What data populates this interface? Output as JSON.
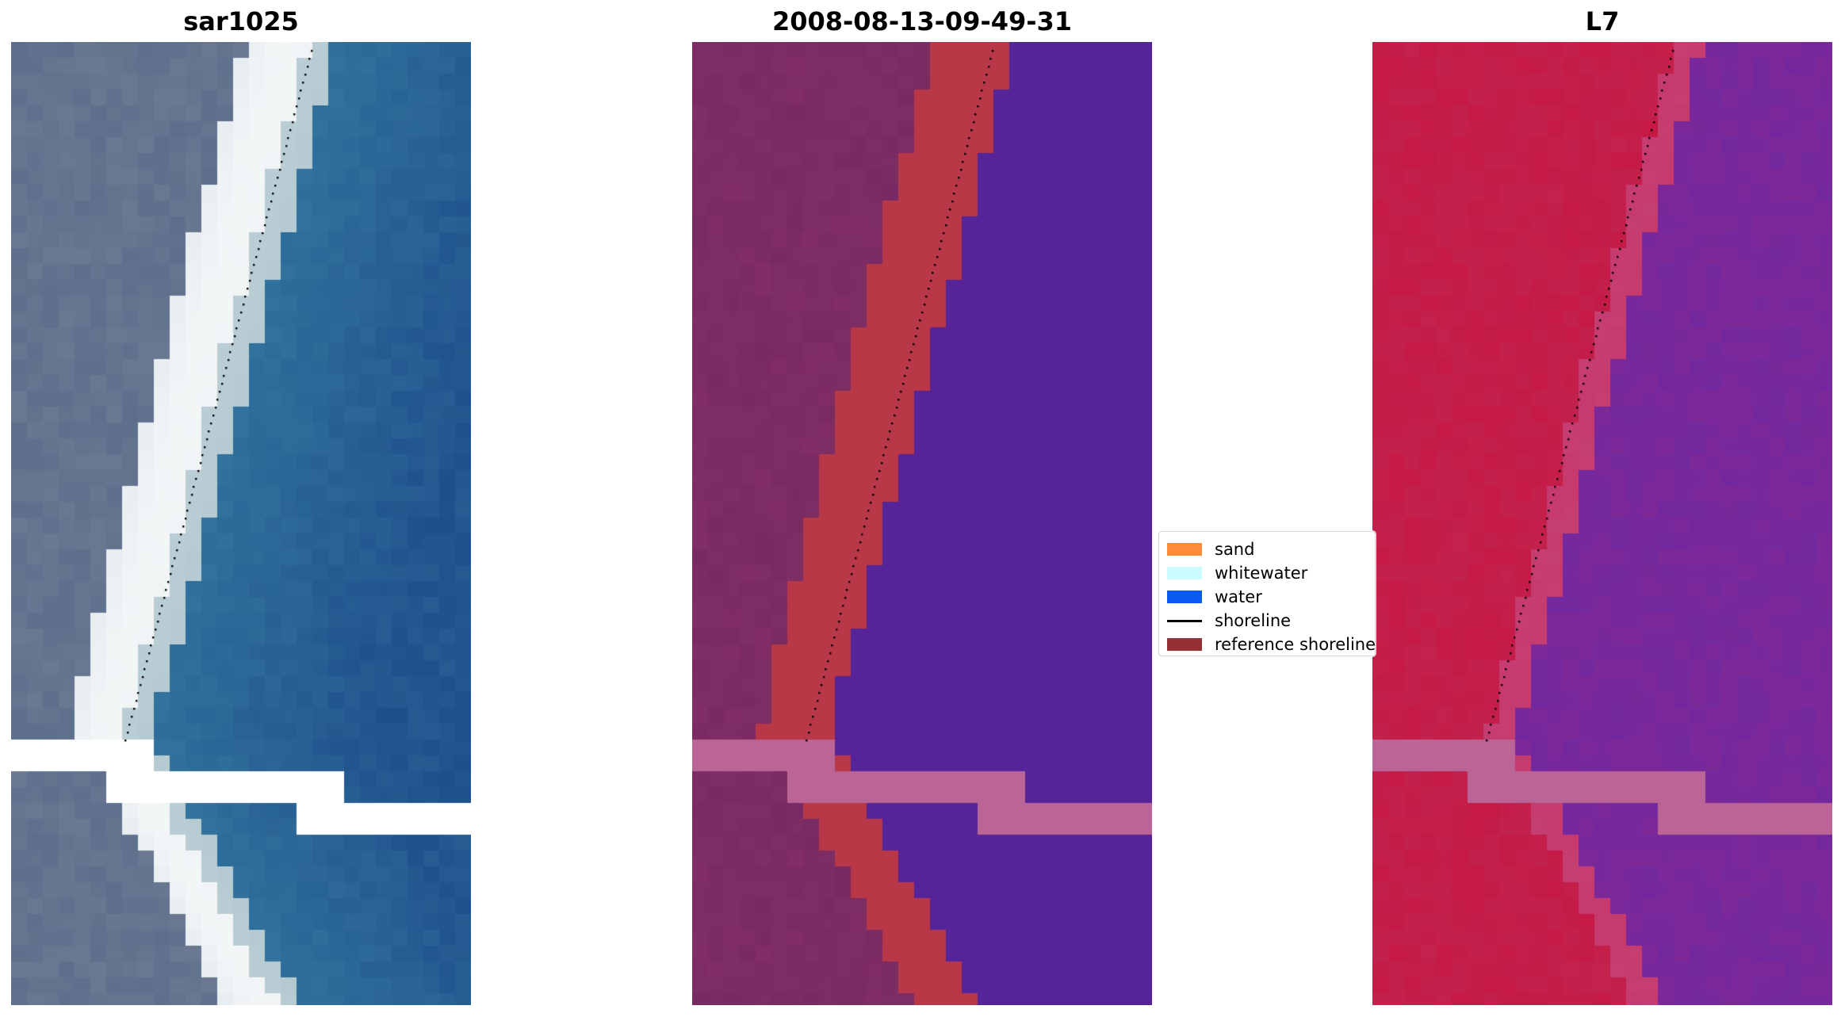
{
  "panels": [
    {
      "title": "sar1025",
      "kind": "rgb"
    },
    {
      "title": "2008-08-13-09-49-31",
      "kind": "classified"
    },
    {
      "title": "L7",
      "kind": "mndwi"
    }
  ],
  "legend": [
    {
      "label": "sand",
      "type": "patch",
      "color": "#ff8c3a"
    },
    {
      "label": "whitewater",
      "type": "patch",
      "color": "#ccfcff"
    },
    {
      "label": "water",
      "type": "patch",
      "color": "#0a5af5"
    },
    {
      "label": "shoreline",
      "type": "line",
      "color": "#000000"
    },
    {
      "label": "reference shoreline",
      "type": "patch",
      "color": "#962f36"
    }
  ],
  "colors": {
    "rgb_land": "#5d6f8c",
    "rgb_beach": "#f3f6f7",
    "rgb_ocean": "#2e6e9a",
    "class_land": "#7a2a62",
    "class_sand": "#b83848",
    "class_water": "#55239a",
    "class_nodata": "#bb6596",
    "mndwi_land": "#c51a45",
    "mndwi_water": "#7d2898",
    "mndwi_nodata": "#bb6596",
    "shoreline_dots": "#000000"
  }
}
